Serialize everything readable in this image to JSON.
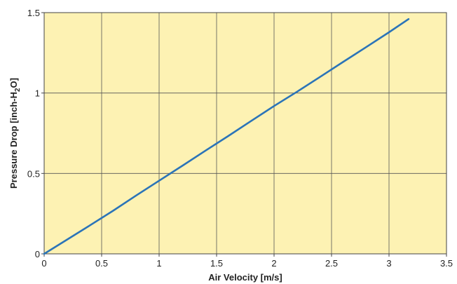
{
  "colors": {
    "plot_background": "#fdf2b3",
    "grid": "#555555",
    "frame": "#444444",
    "line": "#2b74b8"
  },
  "chart_data": {
    "type": "line",
    "title": "",
    "xlabel": "Air Velocity [m/s]",
    "ylabel": {
      "prefix": "Pressure Drop [inch-H",
      "subscript": "2",
      "suffix": "O]"
    },
    "xlim": [
      0,
      3.5
    ],
    "ylim": [
      0,
      1.5
    ],
    "x_ticks": [
      0,
      0.5,
      1,
      1.5,
      2,
      2.5,
      3,
      3.5
    ],
    "x_tick_labels": [
      "0",
      "0.5",
      "1",
      "1.5",
      "2",
      "2.5",
      "3",
      "3.5"
    ],
    "y_ticks": [
      0,
      0.5,
      1,
      1.5
    ],
    "y_tick_labels": [
      "0",
      "0.5",
      "1",
      "1.5"
    ],
    "grid": true,
    "series": [
      {
        "x": [
          0,
          0.2,
          0.4,
          0.6,
          0.8,
          1.0,
          1.2,
          1.4,
          1.6,
          1.8,
          2.0,
          2.2,
          2.4,
          2.6,
          2.8,
          3.0,
          3.17
        ],
        "y": [
          0,
          0.089,
          0.178,
          0.268,
          0.363,
          0.455,
          0.547,
          0.64,
          0.732,
          0.826,
          0.919,
          1.008,
          1.1,
          1.193,
          1.285,
          1.378,
          1.46
        ]
      }
    ]
  }
}
